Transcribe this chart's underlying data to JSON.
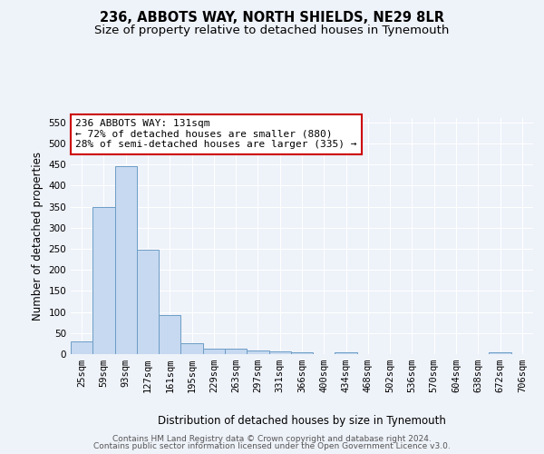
{
  "title1": "236, ABBOTS WAY, NORTH SHIELDS, NE29 8LR",
  "title2": "Size of property relative to detached houses in Tynemouth",
  "xlabel": "Distribution of detached houses by size in Tynemouth",
  "ylabel": "Number of detached properties",
  "bar_labels": [
    "25sqm",
    "59sqm",
    "93sqm",
    "127sqm",
    "161sqm",
    "195sqm",
    "229sqm",
    "263sqm",
    "297sqm",
    "331sqm",
    "366sqm",
    "400sqm",
    "434sqm",
    "468sqm",
    "502sqm",
    "536sqm",
    "570sqm",
    "604sqm",
    "638sqm",
    "672sqm",
    "706sqm"
  ],
  "bar_values": [
    30,
    350,
    445,
    248,
    93,
    25,
    14,
    12,
    8,
    6,
    5,
    0,
    4,
    0,
    0,
    0,
    0,
    0,
    0,
    4,
    0
  ],
  "bar_color": "#c6d9f0",
  "bar_edge_color": "#6c9dc6",
  "annotation_title": "236 ABBOTS WAY: 131sqm",
  "annotation_line2": "← 72% of detached houses are smaller (880)",
  "annotation_line3": "28% of semi-detached houses are larger (335) →",
  "annotation_box_color": "#ffffff",
  "annotation_box_edge": "#cc0000",
  "ylim": [
    0,
    560
  ],
  "yticks": [
    0,
    50,
    100,
    150,
    200,
    250,
    300,
    350,
    400,
    450,
    500,
    550
  ],
  "footer1": "Contains HM Land Registry data © Crown copyright and database right 2024.",
  "footer2": "Contains public sector information licensed under the Open Government Licence v3.0.",
  "background_color": "#eef2f9",
  "grid_color": "#ffffff",
  "title_fontsize": 10.5,
  "subtitle_fontsize": 9.5,
  "axis_label_fontsize": 8.5,
  "tick_fontsize": 7.5,
  "annotation_fontsize": 8,
  "footer_fontsize": 6.5
}
